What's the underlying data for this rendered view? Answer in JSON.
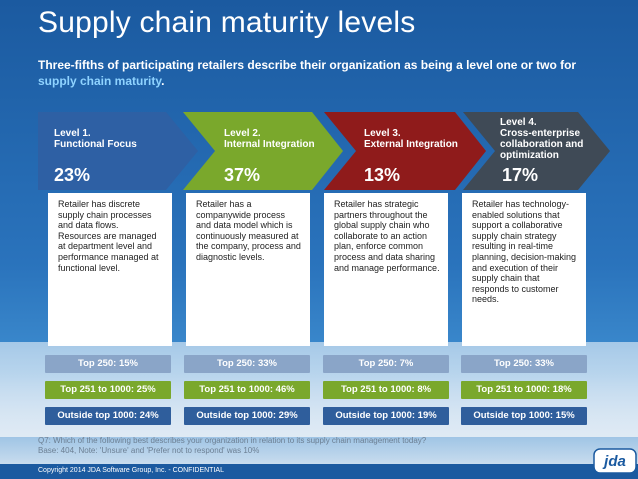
{
  "header": {
    "title": "Supply chain maturity levels",
    "subtitle_prefix": "Three-fifths of participating retailers describe their organization as being a level one or two for ",
    "subtitle_highlight": "supply chain maturity",
    "subtitle_suffix": "."
  },
  "levels": [
    {
      "level": "Level 1.",
      "name": "Functional Focus",
      "percent": "23%",
      "description": "Retailer has discrete supply chain processes and data flows. Resources are managed at department level and performance managed at functional level.",
      "top250": "Top 250: 15%",
      "top251_1000": "Top 251 to 1000: 25%",
      "outside1000": "Outside top 1000: 24%"
    },
    {
      "level": "Level 2.",
      "name": "Internal Integration",
      "percent": "37%",
      "description": "Retailer has a companywide process and data model which is continuously measured at the company, process and diagnostic levels.",
      "top250": "Top 250: 33%",
      "top251_1000": "Top 251 to 1000: 46%",
      "outside1000": "Outside top 1000: 29%"
    },
    {
      "level": "Level 3.",
      "name": "External Integration",
      "percent": "13%",
      "description": "Retailer has strategic partners throughout the global supply chain who collaborate to an action plan, enforce common process and data sharing and manage performance.",
      "top250": "Top 250: 7%",
      "top251_1000": "Top 251 to 1000: 8%",
      "outside1000": "Outside top 1000: 19%"
    },
    {
      "level": "Level 4.",
      "name": "Cross-enterprise collaboration and optimization",
      "percent": "17%",
      "description": "Retailer has technology-enabled solutions that support a collaborative supply chain strategy resulting in real-time planning, decision-making and execution of their supply chain that responds to customer needs.",
      "top250": "Top 250: 33%",
      "top251_1000": "Top 251 to 1000: 18%",
      "outside1000": "Outside top 1000: 15%"
    }
  ],
  "footnote": {
    "question": "Q7: Which of the following best describes your organization in relation to its supply chain management today?",
    "base": "Base: 404, Note: 'Unsure' and 'Prefer not to respond' was 10%"
  },
  "footer": {
    "copyright": "Copyright 2014 JDA Software Group, Inc. - CONFIDENTIAL",
    "logo_text": "jda"
  },
  "colors": {
    "level1": "#2e60a4",
    "level2": "#7aa82c",
    "level3": "#8f1b1b",
    "level4": "#3f4a56",
    "highlight": "#8fd3ff"
  }
}
